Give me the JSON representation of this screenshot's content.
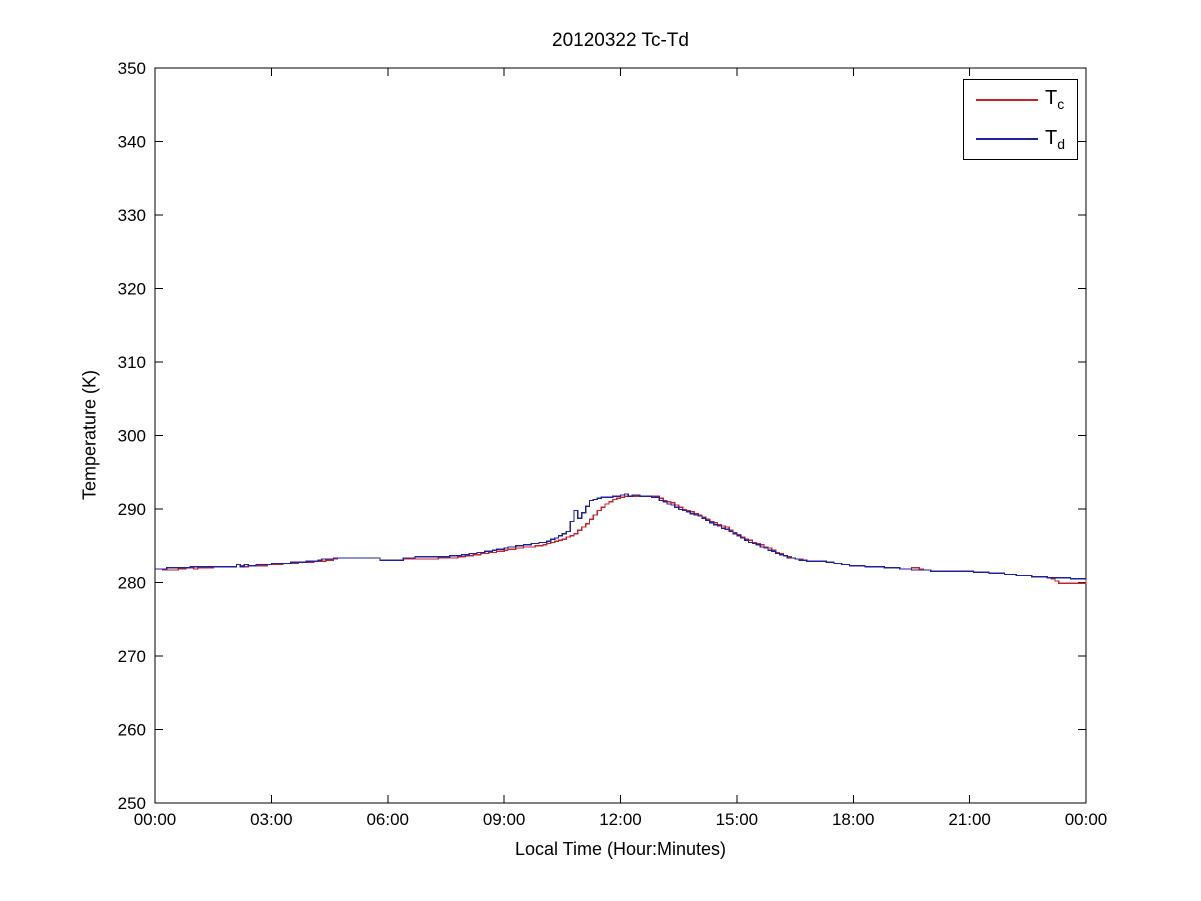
{
  "figure": {
    "title": "20120322 Tc-Td",
    "background": "#ffffff",
    "axis_color": "#000000"
  },
  "chart_data": {
    "type": "line",
    "title": "20120322 Tc-Td",
    "xlabel": "Local Time (Hour:Minutes)",
    "ylabel": "Temperature (K)",
    "xlim_hours": [
      0,
      24
    ],
    "ylim": [
      250,
      350
    ],
    "x_ticks_hours": [
      0,
      3,
      6,
      9,
      12,
      15,
      18,
      21,
      24
    ],
    "x_tick_labels": [
      "00:00",
      "03:00",
      "06:00",
      "09:00",
      "12:00",
      "15:00",
      "18:00",
      "21:00",
      "00:00"
    ],
    "y_ticks": [
      250,
      260,
      270,
      280,
      290,
      300,
      310,
      320,
      330,
      340,
      350
    ],
    "y_tick_labels": [
      "250",
      "260",
      "270",
      "280",
      "290",
      "300",
      "310",
      "320",
      "330",
      "340",
      "350"
    ],
    "grid": false,
    "box": true,
    "line_style": "step",
    "quantization_K": 0.15,
    "sample_step_hours": 0.1,
    "legend": {
      "position": "top-right",
      "entries": [
        {
          "name": "Tc",
          "base": "T",
          "sub": "c",
          "color": "#c4232c"
        },
        {
          "name": "Td",
          "base": "T",
          "sub": "d",
          "color": "#20209f"
        }
      ]
    },
    "series": [
      {
        "name": "Tc",
        "color": "#c4232c",
        "points": [
          [
            0.0,
            281.8
          ],
          [
            0.5,
            281.7
          ],
          [
            0.9,
            282.0
          ],
          [
            1.0,
            281.9
          ],
          [
            1.5,
            282.1
          ],
          [
            2.0,
            282.2
          ],
          [
            2.1,
            282.4
          ],
          [
            2.3,
            282.2
          ],
          [
            2.6,
            282.3
          ],
          [
            3.2,
            282.5
          ],
          [
            3.5,
            282.6
          ],
          [
            4.0,
            282.8
          ],
          [
            4.4,
            283.0
          ],
          [
            4.8,
            283.4
          ],
          [
            5.7,
            283.4
          ],
          [
            5.8,
            283.1
          ],
          [
            6.3,
            283.1
          ],
          [
            6.5,
            283.2
          ],
          [
            7.5,
            283.3
          ],
          [
            8.0,
            283.6
          ],
          [
            8.5,
            284.0
          ],
          [
            9.0,
            284.4
          ],
          [
            9.5,
            284.8
          ],
          [
            10.0,
            285.1
          ],
          [
            10.3,
            285.6
          ],
          [
            10.7,
            286.3
          ],
          [
            11.0,
            287.5
          ],
          [
            11.3,
            289.2
          ],
          [
            11.5,
            290.3
          ],
          [
            11.7,
            291.0
          ],
          [
            11.9,
            291.5
          ],
          [
            12.1,
            291.7
          ],
          [
            12.4,
            291.8
          ],
          [
            12.9,
            291.7
          ],
          [
            13.0,
            291.4
          ],
          [
            13.3,
            290.8
          ],
          [
            13.5,
            290.2
          ],
          [
            13.8,
            289.6
          ],
          [
            14.0,
            289.2
          ],
          [
            14.3,
            288.3
          ],
          [
            14.7,
            287.5
          ],
          [
            15.0,
            286.5
          ],
          [
            15.3,
            285.7
          ],
          [
            15.7,
            284.9
          ],
          [
            16.0,
            284.1
          ],
          [
            16.3,
            283.5
          ],
          [
            16.7,
            283.0
          ],
          [
            17.0,
            282.9
          ],
          [
            17.3,
            282.8
          ],
          [
            17.7,
            282.5
          ],
          [
            18.0,
            282.3
          ],
          [
            18.3,
            282.2
          ],
          [
            18.7,
            282.1
          ],
          [
            19.0,
            282.0
          ],
          [
            19.3,
            281.8
          ],
          [
            19.6,
            282.0
          ],
          [
            19.8,
            281.7
          ],
          [
            20.0,
            281.6
          ],
          [
            21.0,
            281.5
          ],
          [
            21.5,
            281.3
          ],
          [
            22.0,
            281.1
          ],
          [
            22.5,
            280.9
          ],
          [
            23.0,
            280.7
          ],
          [
            23.3,
            279.9
          ],
          [
            23.9,
            279.9
          ],
          [
            23.95,
            280.4
          ],
          [
            24.0,
            280.4
          ]
        ]
      },
      {
        "name": "Td",
        "color": "#20209f",
        "points": [
          [
            0.0,
            281.8
          ],
          [
            0.4,
            282.0
          ],
          [
            1.0,
            282.1
          ],
          [
            2.0,
            282.2
          ],
          [
            2.1,
            282.5
          ],
          [
            2.2,
            282.2
          ],
          [
            2.3,
            282.5
          ],
          [
            2.4,
            282.3
          ],
          [
            2.9,
            282.5
          ],
          [
            3.5,
            282.7
          ],
          [
            4.0,
            282.9
          ],
          [
            4.4,
            283.2
          ],
          [
            4.7,
            283.4
          ],
          [
            5.7,
            283.4
          ],
          [
            5.8,
            283.1
          ],
          [
            6.3,
            283.1
          ],
          [
            6.4,
            283.4
          ],
          [
            7.4,
            283.5
          ],
          [
            8.0,
            283.8
          ],
          [
            8.5,
            284.2
          ],
          [
            9.0,
            284.7
          ],
          [
            9.5,
            285.1
          ],
          [
            10.0,
            285.5
          ],
          [
            10.3,
            286.0
          ],
          [
            10.6,
            286.9
          ],
          [
            10.8,
            289.8
          ],
          [
            10.9,
            288.8
          ],
          [
            11.0,
            289.5
          ],
          [
            11.1,
            290.4
          ],
          [
            11.2,
            291.1
          ],
          [
            11.4,
            291.5
          ],
          [
            11.6,
            291.6
          ],
          [
            11.9,
            291.8
          ],
          [
            12.1,
            292.0
          ],
          [
            12.2,
            291.8
          ],
          [
            12.4,
            291.9
          ],
          [
            12.5,
            291.8
          ],
          [
            12.9,
            291.6
          ],
          [
            13.0,
            291.2
          ],
          [
            13.3,
            290.5
          ],
          [
            13.5,
            290.0
          ],
          [
            13.8,
            289.4
          ],
          [
            14.0,
            289.0
          ],
          [
            14.3,
            288.1
          ],
          [
            14.7,
            287.2
          ],
          [
            15.0,
            286.3
          ],
          [
            15.3,
            285.5
          ],
          [
            15.7,
            284.7
          ],
          [
            16.0,
            284.0
          ],
          [
            16.3,
            283.4
          ],
          [
            16.7,
            283.0
          ],
          [
            17.0,
            282.9
          ],
          [
            17.3,
            282.8
          ],
          [
            17.7,
            282.5
          ],
          [
            18.0,
            282.3
          ],
          [
            18.3,
            282.2
          ],
          [
            18.7,
            282.1
          ],
          [
            19.0,
            282.0
          ],
          [
            19.3,
            281.8
          ],
          [
            19.7,
            281.7
          ],
          [
            20.0,
            281.6
          ],
          [
            21.0,
            281.5
          ],
          [
            21.5,
            281.3
          ],
          [
            22.0,
            281.1
          ],
          [
            22.5,
            280.9
          ],
          [
            23.0,
            280.7
          ],
          [
            23.5,
            280.6
          ],
          [
            24.0,
            280.4
          ]
        ]
      }
    ]
  }
}
